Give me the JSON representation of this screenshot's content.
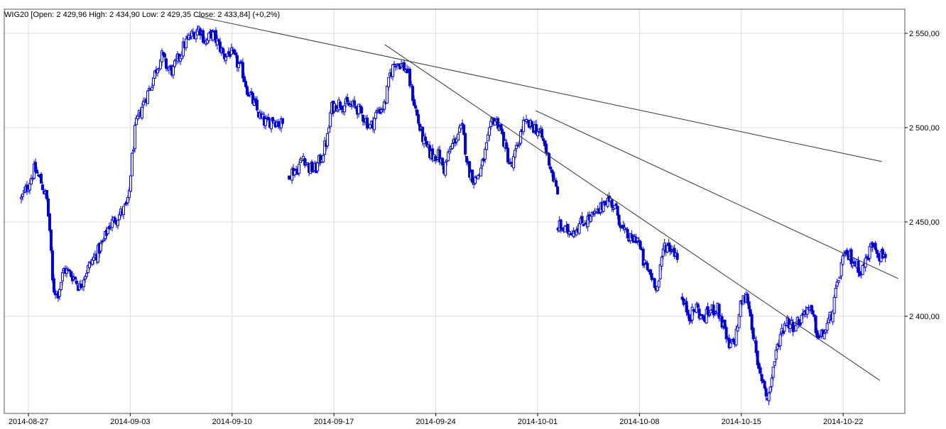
{
  "chart_data": {
    "type": "candlestick",
    "instrument": "WIG20",
    "header": {
      "instrument": "WIG20",
      "open_label": "Open",
      "open": "2 429,96",
      "high_label": "High",
      "high": "2 434,90",
      "low_label": "Low",
      "low": "2 429,35",
      "close_label": "Close",
      "close": "2 433,84",
      "change": "(+0,2%)"
    },
    "y_axis": {
      "range": [
        2351,
        2561
      ],
      "ticks": [
        {
          "value": 2400,
          "label": "2 400,00"
        },
        {
          "value": 2450,
          "label": "2 450,00"
        },
        {
          "value": 2500,
          "label": "2 500,00"
        },
        {
          "value": 2550,
          "label": "2 550,00"
        }
      ],
      "position": "right"
    },
    "x_axis": {
      "range": [
        0,
        43.1
      ],
      "ticks": [
        {
          "x": 1,
          "label": "2014-08-27"
        },
        {
          "x": 6,
          "label": "2014-09-03"
        },
        {
          "x": 11,
          "label": "2014-09-10"
        },
        {
          "x": 16,
          "label": "2014-09-17"
        },
        {
          "x": 21,
          "label": "2014-09-24"
        },
        {
          "x": 26,
          "label": "2014-10-01"
        },
        {
          "x": 31,
          "label": "2014-10-08"
        },
        {
          "x": 36,
          "label": "2014-10-15"
        },
        {
          "x": 41,
          "label": "2014-10-22"
        }
      ]
    },
    "grid": true,
    "colors": {
      "candle": "#0000cc",
      "grid": "#dddddd",
      "trendline": "#333333",
      "axis": "#000000"
    },
    "path": [
      [
        0.65,
        2462
      ],
      [
        1.0,
        2470
      ],
      [
        1.3,
        2478
      ],
      [
        1.6,
        2472
      ],
      [
        1.9,
        2462
      ],
      [
        2.05,
        2445
      ],
      [
        2.2,
        2415
      ],
      [
        2.45,
        2412
      ],
      [
        2.75,
        2425
      ],
      [
        3.0,
        2423
      ],
      [
        3.3,
        2420
      ],
      [
        3.5,
        2415
      ],
      [
        3.75,
        2422
      ],
      [
        4.05,
        2428
      ],
      [
        4.4,
        2434
      ],
      [
        4.7,
        2440
      ],
      [
        4.95,
        2448
      ],
      [
        5.3,
        2452
      ],
      [
        5.65,
        2456
      ],
      [
        5.9,
        2460
      ],
      [
        6.05,
        2480
      ],
      [
        6.25,
        2500
      ],
      [
        6.6,
        2512
      ],
      [
        7.0,
        2522
      ],
      [
        7.3,
        2532
      ],
      [
        7.55,
        2538
      ],
      [
        7.8,
        2532
      ],
      [
        8.1,
        2530
      ],
      [
        8.4,
        2538
      ],
      [
        8.7,
        2545
      ],
      [
        9.1,
        2550
      ],
      [
        9.4,
        2553
      ],
      [
        9.7,
        2545
      ],
      [
        10.0,
        2550
      ],
      [
        10.3,
        2545
      ],
      [
        10.6,
        2538
      ],
      [
        10.9,
        2540
      ],
      [
        11.2,
        2535
      ],
      [
        11.5,
        2530
      ],
      [
        11.75,
        2520
      ],
      [
        12.1,
        2512
      ],
      [
        12.4,
        2505
      ],
      [
        12.7,
        2502
      ],
      [
        13.0,
        2505
      ],
      [
        13.3,
        2502
      ],
      [
        13.55,
        2502
      ],
      null,
      [
        13.8,
        2476
      ],
      [
        14.2,
        2478
      ],
      [
        14.5,
        2485
      ],
      [
        14.8,
        2478
      ],
      [
        15.1,
        2478
      ],
      [
        15.4,
        2485
      ],
      [
        15.7,
        2495
      ],
      [
        15.85,
        2510
      ],
      [
        16.2,
        2513
      ],
      [
        16.6,
        2512
      ],
      [
        17.1,
        2511
      ],
      [
        17.5,
        2505
      ],
      [
        17.8,
        2500
      ],
      [
        18.1,
        2508
      ],
      [
        18.5,
        2512
      ],
      [
        18.75,
        2528
      ],
      [
        19.0,
        2535
      ],
      [
        19.25,
        2534
      ],
      [
        19.6,
        2530
      ],
      [
        19.9,
        2515
      ],
      [
        20.2,
        2500
      ],
      [
        20.5,
        2490
      ],
      [
        20.8,
        2485
      ],
      [
        21.1,
        2486
      ],
      [
        21.4,
        2478
      ],
      [
        21.7,
        2488
      ],
      [
        22.0,
        2495
      ],
      [
        22.3,
        2500
      ],
      [
        22.6,
        2478
      ],
      [
        22.9,
        2472
      ],
      [
        23.2,
        2477
      ],
      [
        23.5,
        2490
      ],
      [
        23.8,
        2505
      ],
      [
        24.1,
        2502
      ],
      [
        24.4,
        2490
      ],
      [
        24.7,
        2478
      ],
      [
        25.0,
        2490
      ],
      [
        25.3,
        2502
      ],
      [
        25.6,
        2501
      ],
      [
        25.9,
        2500
      ],
      [
        26.2,
        2495
      ],
      [
        26.5,
        2485
      ],
      [
        26.8,
        2472
      ],
      [
        27.0,
        2463
      ],
      null,
      [
        27.0,
        2448
      ],
      [
        27.4,
        2445
      ],
      [
        27.8,
        2446
      ],
      [
        28.2,
        2450
      ],
      [
        28.6,
        2452
      ],
      [
        29.0,
        2455
      ],
      [
        29.3,
        2462
      ],
      [
        29.6,
        2461
      ],
      [
        29.9,
        2455
      ],
      [
        30.2,
        2445
      ],
      [
        30.6,
        2440
      ],
      [
        30.9,
        2442
      ],
      [
        31.2,
        2428
      ],
      [
        31.55,
        2422
      ],
      [
        31.9,
        2415
      ],
      [
        32.2,
        2438
      ],
      [
        32.6,
        2436
      ],
      [
        32.9,
        2432
      ],
      null,
      [
        33.1,
        2408
      ],
      [
        33.5,
        2400
      ],
      [
        33.8,
        2405
      ],
      [
        34.1,
        2398
      ],
      [
        34.4,
        2402
      ],
      [
        34.8,
        2405
      ],
      [
        35.1,
        2395
      ],
      [
        35.4,
        2383
      ],
      [
        35.7,
        2388
      ],
      [
        36.0,
        2408
      ],
      [
        36.3,
        2410
      ],
      [
        36.6,
        2390
      ],
      [
        36.8,
        2372
      ],
      [
        37.1,
        2365
      ],
      [
        37.3,
        2355
      ],
      [
        37.6,
        2375
      ],
      [
        37.9,
        2390
      ],
      [
        38.2,
        2398
      ],
      [
        38.5,
        2395
      ],
      [
        38.9,
        2398
      ],
      [
        39.2,
        2405
      ],
      [
        39.5,
        2400
      ],
      [
        39.8,
        2388
      ],
      [
        40.1,
        2392
      ],
      [
        40.4,
        2400
      ],
      [
        40.7,
        2415
      ],
      [
        40.95,
        2430
      ],
      [
        41.3,
        2432
      ],
      [
        41.6,
        2428
      ],
      [
        41.9,
        2424
      ],
      [
        42.2,
        2432
      ],
      [
        42.5,
        2440
      ],
      [
        42.8,
        2432
      ],
      [
        43.1,
        2433
      ]
    ],
    "trendlines": [
      {
        "from": [
          9.3,
          2559
        ],
        "to": [
          42.9,
          2482
        ]
      },
      {
        "from": [
          18.5,
          2544
        ],
        "to": [
          42.8,
          2366
        ]
      },
      {
        "from": [
          25.9,
          2509
        ],
        "to": [
          43.7,
          2420
        ]
      }
    ]
  }
}
